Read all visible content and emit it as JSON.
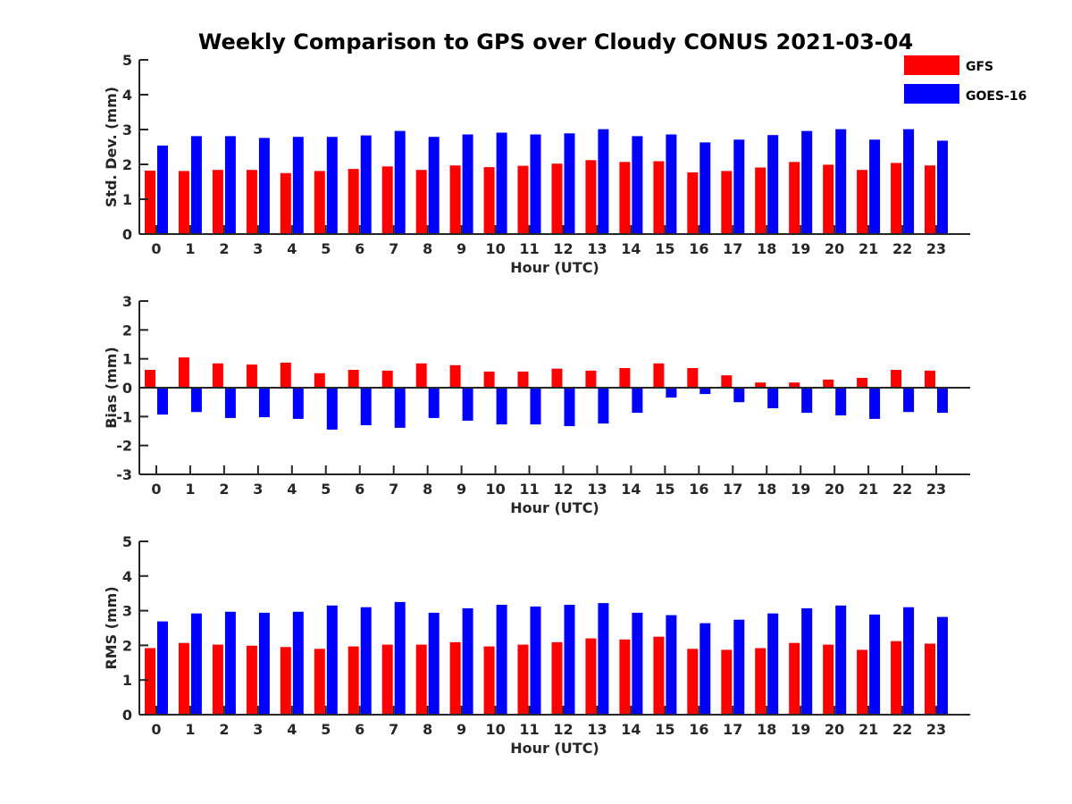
{
  "title": "Weekly Comparison to GPS over Cloudy CONUS 2021-03-04",
  "legend": {
    "placement": "top-right",
    "entries": [
      {
        "name": "GFS",
        "color": "#ff0000"
      },
      {
        "name": "GOES-16",
        "color": "#0000ff"
      }
    ]
  },
  "chart_data": [
    {
      "type": "bar",
      "xlabel": "Hour (UTC)",
      "ylabel": "Std. Dev. (mm)",
      "ylim": [
        0,
        5
      ],
      "yticks": [
        0,
        1,
        2,
        3,
        4,
        5
      ],
      "categories": [
        "0",
        "1",
        "2",
        "3",
        "4",
        "5",
        "6",
        "7",
        "8",
        "9",
        "10",
        "11",
        "12",
        "13",
        "14",
        "15",
        "16",
        "17",
        "18",
        "19",
        "20",
        "21",
        "22",
        "23"
      ],
      "series": [
        {
          "name": "GFS",
          "color": "#ff0000",
          "values": [
            1.82,
            1.81,
            1.84,
            1.84,
            1.75,
            1.81,
            1.87,
            1.94,
            1.84,
            1.97,
            1.92,
            1.96,
            2.02,
            2.12,
            2.07,
            2.09,
            1.77,
            1.81,
            1.91,
            2.07,
            1.99,
            1.84,
            2.04,
            1.97
          ]
        },
        {
          "name": "GOES-16",
          "color": "#0000ff",
          "values": [
            2.54,
            2.81,
            2.81,
            2.76,
            2.79,
            2.79,
            2.83,
            2.96,
            2.79,
            2.86,
            2.91,
            2.86,
            2.89,
            3.01,
            2.81,
            2.86,
            2.63,
            2.71,
            2.84,
            2.96,
            3.01,
            2.71,
            3.01,
            2.68
          ]
        }
      ]
    },
    {
      "type": "bar",
      "xlabel": "Hour (UTC)",
      "ylabel": "Bias (mm)",
      "ylim": [
        -3,
        3
      ],
      "yticks": [
        -3,
        -2,
        -1,
        0,
        1,
        2,
        3
      ],
      "categories": [
        "0",
        "1",
        "2",
        "3",
        "4",
        "5",
        "6",
        "7",
        "8",
        "9",
        "10",
        "11",
        "12",
        "13",
        "14",
        "15",
        "16",
        "17",
        "18",
        "19",
        "20",
        "21",
        "22",
        "23"
      ],
      "series": [
        {
          "name": "GFS",
          "color": "#ff0000",
          "values": [
            0.62,
            1.05,
            0.84,
            0.8,
            0.87,
            0.5,
            0.62,
            0.59,
            0.84,
            0.78,
            0.56,
            0.56,
            0.66,
            0.59,
            0.68,
            0.84,
            0.68,
            0.43,
            0.18,
            0.18,
            0.28,
            0.34,
            0.62,
            0.59
          ]
        },
        {
          "name": "GOES-16",
          "color": "#0000ff",
          "values": [
            -0.93,
            -0.84,
            -1.05,
            -1.02,
            -1.08,
            -1.45,
            -1.3,
            -1.39,
            -1.05,
            -1.14,
            -1.27,
            -1.27,
            -1.33,
            -1.24,
            -0.87,
            -0.34,
            -0.22,
            -0.5,
            -0.71,
            -0.87,
            -0.96,
            -1.08,
            -0.84,
            -0.87
          ]
        }
      ]
    },
    {
      "type": "bar",
      "xlabel": "Hour (UTC)",
      "ylabel": "RMS (mm)",
      "ylim": [
        0,
        5
      ],
      "yticks": [
        0,
        1,
        2,
        3,
        4,
        5
      ],
      "categories": [
        "0",
        "1",
        "2",
        "3",
        "4",
        "5",
        "6",
        "7",
        "8",
        "9",
        "10",
        "11",
        "12",
        "13",
        "14",
        "15",
        "16",
        "17",
        "18",
        "19",
        "20",
        "21",
        "22",
        "23"
      ],
      "series": [
        {
          "name": "GFS",
          "color": "#ff0000",
          "values": [
            1.92,
            2.07,
            2.02,
            1.99,
            1.95,
            1.9,
            1.97,
            2.02,
            2.02,
            2.09,
            1.97,
            2.02,
            2.09,
            2.2,
            2.17,
            2.25,
            1.9,
            1.87,
            1.92,
            2.07,
            2.02,
            1.87,
            2.12,
            2.05
          ]
        },
        {
          "name": "GOES-16",
          "color": "#0000ff",
          "values": [
            2.69,
            2.92,
            2.97,
            2.94,
            2.97,
            3.15,
            3.1,
            3.25,
            2.94,
            3.07,
            3.17,
            3.12,
            3.17,
            3.22,
            2.94,
            2.87,
            2.64,
            2.74,
            2.92,
            3.07,
            3.15,
            2.89,
            3.1,
            2.82
          ]
        }
      ]
    }
  ]
}
